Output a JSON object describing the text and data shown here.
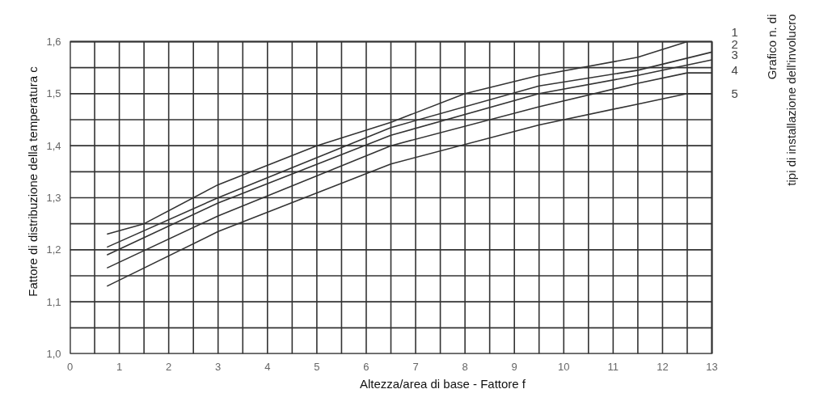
{
  "chart_data": {
    "type": "line",
    "xlabel": "Altezza/area di base - Fattore f",
    "ylabel": "Fattore di distribuzione della temperatura c",
    "y2label": "Grafico n. di\ntipi di installazione dell'involucro",
    "xlim": [
      0,
      13
    ],
    "ylim": [
      1.0,
      1.6
    ],
    "xticks": [
      0,
      {
        "value": 0.5,
        "label": null
      },
      1,
      {
        "value": 1.5,
        "label": null
      },
      2,
      {
        "value": 2.5,
        "label": null
      },
      3,
      {
        "value": 3.5,
        "label": null
      },
      4,
      {
        "value": 4.5,
        "label": null
      },
      5,
      {
        "value": 5.5,
        "label": null
      },
      6,
      {
        "value": 6.5,
        "label": null
      },
      7,
      {
        "value": 7.5,
        "label": null
      },
      8,
      {
        "value": 8.5,
        "label": null
      },
      9,
      {
        "value": 9.5,
        "label": null
      },
      10,
      {
        "value": 10.5,
        "label": null
      },
      11,
      {
        "value": 11.5,
        "label": null
      },
      12,
      {
        "value": 12.5,
        "label": null
      },
      13
    ],
    "yticks": [
      {
        "value": 1.0,
        "label": "1,0"
      },
      {
        "value": 1.05,
        "label": null
      },
      {
        "value": 1.1,
        "label": "1,1"
      },
      {
        "value": 1.15,
        "label": null
      },
      {
        "value": 1.2,
        "label": "1,2"
      },
      {
        "value": 1.25,
        "label": null
      },
      {
        "value": 1.3,
        "label": "1,3"
      },
      {
        "value": 1.35,
        "label": null
      },
      {
        "value": 1.4,
        "label": "1,4"
      },
      {
        "value": 1.45,
        "label": null
      },
      {
        "value": 1.5,
        "label": "1,5"
      },
      {
        "value": 1.55,
        "label": null
      },
      {
        "value": 1.6,
        "label": "1,6"
      }
    ],
    "grid": true,
    "legend": "right",
    "marker": "none",
    "line_style": "solid",
    "series": [
      {
        "name": "1",
        "color": "#333333",
        "x": [
          0.75,
          1.5,
          3,
          5,
          6.5,
          8,
          9.5,
          11.5,
          12.5
        ],
        "values": [
          1.23,
          1.25,
          1.325,
          1.4,
          1.445,
          1.5,
          1.535,
          1.57,
          1.6
        ]
      },
      {
        "name": "2",
        "color": "#333333",
        "x": [
          0.75,
          3,
          6.5,
          9.5,
          11.5,
          13
        ],
        "values": [
          1.205,
          1.3,
          1.435,
          1.515,
          1.545,
          1.58
        ]
      },
      {
        "name": "3",
        "color": "#333333",
        "x": [
          0.75,
          3,
          6.5,
          9.5,
          11.5,
          13
        ],
        "values": [
          1.19,
          1.29,
          1.42,
          1.5,
          1.535,
          1.565
        ]
      },
      {
        "name": "4",
        "color": "#333333",
        "x": [
          0.75,
          3,
          6.5,
          9.5,
          11.5,
          12.5,
          13
        ],
        "values": [
          1.165,
          1.265,
          1.4,
          1.475,
          1.52,
          1.54,
          1.54
        ]
      },
      {
        "name": "5",
        "color": "#333333",
        "x": [
          0.75,
          3,
          6.5,
          9.5,
          11.5,
          12.5,
          13
        ],
        "values": [
          1.13,
          1.235,
          1.365,
          1.44,
          1.48,
          1.5,
          1.5
        ]
      }
    ]
  }
}
